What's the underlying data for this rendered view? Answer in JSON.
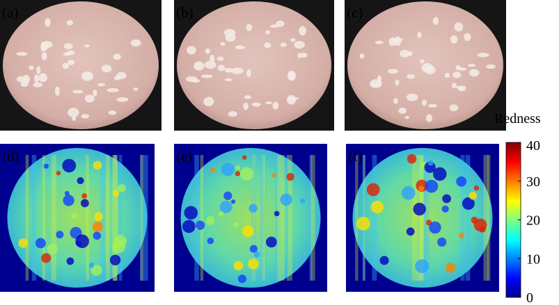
{
  "panels": [
    {
      "label": "(a)"
    },
    {
      "label": "(b)"
    },
    {
      "label": "(c)"
    },
    {
      "label": "(d)"
    },
    {
      "label": "(e)"
    },
    {
      "label": "(f)"
    }
  ],
  "colorbar": {
    "title": "Redness",
    "lim": [
      0,
      40
    ],
    "ticks": [
      0,
      10,
      20,
      30,
      40
    ]
  }
}
